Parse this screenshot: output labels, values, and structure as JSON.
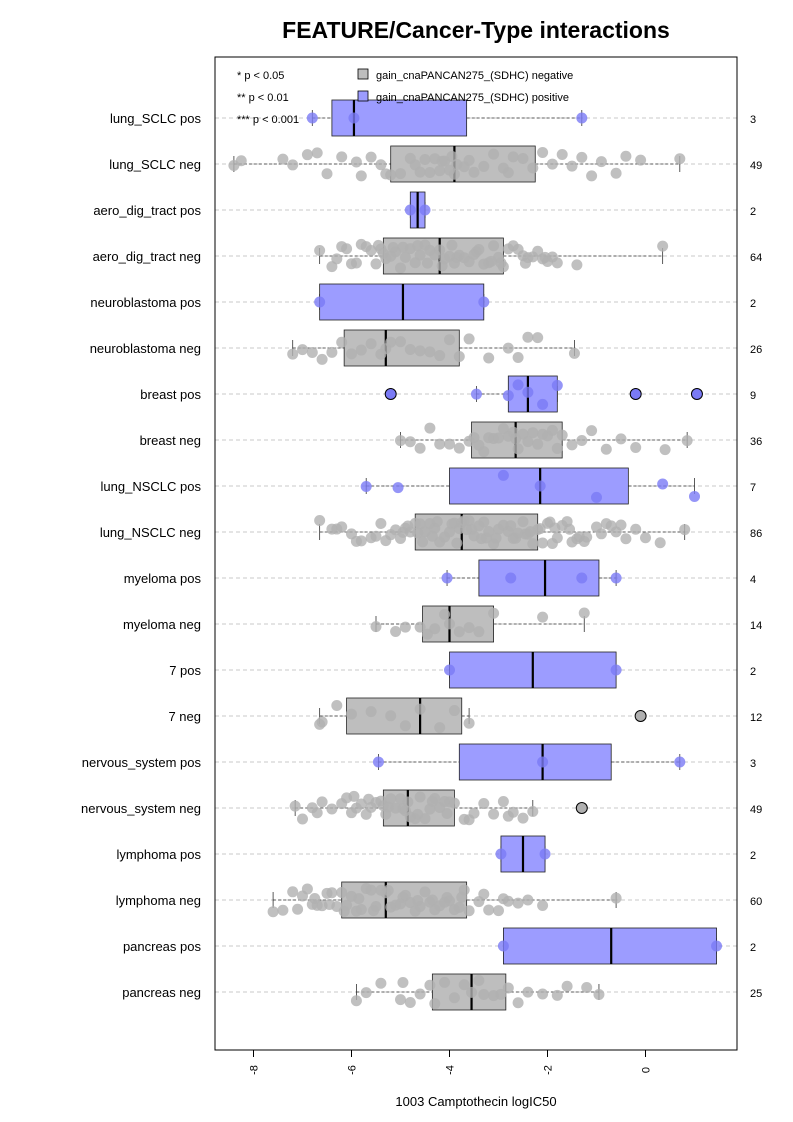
{
  "chart_data": {
    "type": "box",
    "title": "FEATURE/Cancer-Type interactions",
    "xlabel": "1003 Camptothecin logIC50",
    "xlim": [
      -8.8,
      1.8
    ],
    "xticks": [
      -8,
      -6,
      -4,
      -2,
      0
    ],
    "tick_labels": [
      "-8",
      "-6",
      "-4",
      "-2",
      "0"
    ],
    "grid": "horizontal dashed",
    "legend": {
      "placement": "top",
      "significance": [
        "* p < 0.05",
        "** p < 0.01",
        "*** p < 0.001"
      ],
      "entries": [
        {
          "label": "gain_cnaPANCAN275_(SDHC) negative",
          "color": "#bebebe"
        },
        {
          "label": "gain_cnaPANCAN275_(SDHC) positive",
          "color": "#9c9cff"
        }
      ]
    },
    "colors": {
      "neg": "#bebebe",
      "pos": "#9c9cff",
      "pos_point": "#7a7af5",
      "neg_point": "#b0b0b0"
    },
    "groups": [
      {
        "label": "lung_SCLC pos",
        "n": "3",
        "type": "pos",
        "q1": -6.4,
        "median": -5.95,
        "q3": -3.65,
        "whisker_low": -6.8,
        "whisker_high": -1.3,
        "points": [
          -6.8,
          -5.95,
          -1.3
        ],
        "outliers": []
      },
      {
        "label": "lung_SCLC neg",
        "n": "49",
        "type": "neg",
        "q1": -5.2,
        "median": -3.9,
        "q3": -2.25,
        "whisker_low": -8.4,
        "whisker_high": 0.7,
        "points": [
          -8.4,
          -8.25,
          -7.4,
          -7.2,
          -6.9,
          -6.7,
          -6.5,
          -6.2,
          -5.9,
          -5.8,
          -5.6,
          -5.4,
          -5.2,
          -5.0,
          -4.8,
          -4.7,
          -4.6,
          -4.5,
          -4.4,
          -4.3,
          -4.2,
          -4.1,
          -4.0,
          -3.9,
          -3.85,
          -3.7,
          -3.6,
          -3.5,
          -3.3,
          -3.1,
          -2.9,
          -2.7,
          -2.5,
          -2.3,
          -2.1,
          -1.9,
          -1.7,
          -1.5,
          -1.3,
          -1.1,
          -0.9,
          -0.6,
          -0.4,
          -0.1,
          0.7,
          -3.95,
          -4.15,
          -2.8,
          -5.3
        ],
        "outliers": []
      },
      {
        "label": "aero_dig_tract pos",
        "n": "2",
        "type": "pos",
        "q1": -4.8,
        "median": -4.65,
        "q3": -4.5,
        "whisker_low": -4.8,
        "whisker_high": -4.5,
        "points": [
          -4.8,
          -4.5
        ],
        "outliers": []
      },
      {
        "label": "aero_dig_tract neg",
        "n": "64",
        "type": "neg",
        "q1": -5.35,
        "median": -4.2,
        "q3": -2.9,
        "whisker_low": -6.65,
        "whisker_high": 0.35,
        "points": [
          -6.65,
          -6.4,
          -6.3,
          -6.2,
          -6.1,
          -6.0,
          -5.9,
          -5.8,
          -5.7,
          -5.6,
          -5.5,
          -5.4,
          -5.35,
          -5.3,
          -5.2,
          -5.1,
          -5.0,
          -4.9,
          -4.8,
          -4.7,
          -4.6,
          -4.5,
          -4.4,
          -4.3,
          -4.2,
          -4.15,
          -4.1,
          -4.0,
          -3.9,
          -3.8,
          -3.7,
          -3.6,
          -3.5,
          -3.4,
          -3.3,
          -3.2,
          -3.1,
          -3.0,
          -2.9,
          -2.8,
          -2.7,
          -2.6,
          -2.5,
          -2.4,
          -2.3,
          -2.2,
          -2.1,
          -2.0,
          -1.9,
          -1.8,
          -1.4,
          0.35,
          -5.45,
          -4.95,
          -4.45,
          -3.95,
          -3.45,
          -2.95,
          -2.45,
          -5.15,
          -4.65,
          -3.85,
          -3.15,
          -2.05
        ],
        "outliers": []
      },
      {
        "label": "neuroblastoma pos",
        "n": "2",
        "type": "pos",
        "q1": -6.65,
        "median": -4.95,
        "q3": -3.3,
        "whisker_low": -6.65,
        "whisker_high": -3.3,
        "points": [
          -6.65,
          -3.3
        ],
        "outliers": []
      },
      {
        "label": "neuroblastoma neg",
        "n": "26",
        "type": "neg",
        "q1": -6.15,
        "median": -5.3,
        "q3": -3.8,
        "whisker_low": -7.2,
        "whisker_high": -1.45,
        "points": [
          -7.2,
          -7.0,
          -6.8,
          -6.6,
          -6.4,
          -6.2,
          -6.0,
          -5.8,
          -5.6,
          -5.4,
          -5.3,
          -5.2,
          -5.0,
          -4.8,
          -4.6,
          -4.4,
          -4.2,
          -4.0,
          -3.8,
          -3.6,
          -3.2,
          -2.8,
          -2.6,
          -2.4,
          -2.2,
          -1.45
        ],
        "outliers": []
      },
      {
        "label": "breast pos",
        "n": "9",
        "type": "pos",
        "q1": -2.8,
        "median": -2.4,
        "q3": -1.8,
        "whisker_low": -3.45,
        "whisker_high": -1.8,
        "points": [
          -3.45,
          -2.8,
          -2.6,
          -2.4,
          -2.1,
          -1.8
        ],
        "outliers": [
          -5.2,
          -0.2,
          1.05
        ]
      },
      {
        "label": "breast neg",
        "n": "36",
        "type": "neg",
        "q1": -3.55,
        "median": -2.65,
        "q3": -1.7,
        "whisker_low": -5.0,
        "whisker_high": 0.85,
        "points": [
          -5.0,
          -4.8,
          -4.6,
          -4.4,
          -4.2,
          -4.0,
          -3.8,
          -3.6,
          -3.5,
          -3.4,
          -3.3,
          -3.2,
          -3.1,
          -3.0,
          -2.9,
          -2.8,
          -2.7,
          -2.65,
          -2.6,
          -2.5,
          -2.4,
          -2.3,
          -2.2,
          -2.1,
          -2.0,
          -1.9,
          -1.8,
          -1.7,
          -1.5,
          -1.3,
          -1.1,
          -0.8,
          -0.5,
          -0.2,
          0.4,
          0.85
        ],
        "outliers": []
      },
      {
        "label": "lung_NSCLC pos",
        "n": "7",
        "type": "pos",
        "q1": -4.0,
        "median": -2.15,
        "q3": -0.35,
        "whisker_low": -5.7,
        "whisker_high": 1.0,
        "points": [
          -5.7,
          -5.05,
          -2.9,
          -2.15,
          -1.0,
          0.35,
          1.0
        ],
        "outliers": []
      },
      {
        "label": "lung_NSCLC neg",
        "n": "86",
        "type": "neg",
        "q1": -4.7,
        "median": -3.75,
        "q3": -2.2,
        "whisker_low": -6.65,
        "whisker_high": 0.8,
        "points": [
          -6.65,
          -6.4,
          -6.2,
          -6.0,
          -5.8,
          -5.6,
          -5.4,
          -5.2,
          -5.0,
          -4.9,
          -4.8,
          -4.7,
          -4.6,
          -4.5,
          -4.4,
          -4.3,
          -4.2,
          -4.1,
          -4.0,
          -3.9,
          -3.8,
          -3.75,
          -3.7,
          -3.6,
          -3.5,
          -3.4,
          -3.3,
          -3.2,
          -3.1,
          -3.0,
          -2.9,
          -2.8,
          -2.7,
          -2.6,
          -2.5,
          -2.4,
          -2.3,
          -2.2,
          -2.1,
          -2.0,
          -1.9,
          -1.8,
          -1.7,
          -1.6,
          -1.5,
          -1.4,
          -1.2,
          -1.0,
          -0.8,
          -0.6,
          -0.4,
          -0.2,
          0.0,
          0.3,
          0.8,
          -6.3,
          -5.9,
          -5.5,
          -5.1,
          -4.85,
          -4.55,
          -4.25,
          -3.95,
          -3.65,
          -3.35,
          -3.05,
          -2.75,
          -2.45,
          -2.15,
          -1.85,
          -1.55,
          -1.25,
          -0.9,
          -0.5,
          -5.3,
          -4.95,
          -4.35,
          -3.85,
          -3.25,
          -2.65,
          -1.95,
          -1.35,
          -0.7,
          -4.65,
          -3.55,
          -2.35
        ],
        "outliers": []
      },
      {
        "label": "myeloma pos",
        "n": "4",
        "type": "pos",
        "q1": -3.4,
        "median": -2.05,
        "q3": -0.95,
        "whisker_low": -4.05,
        "whisker_high": -0.6,
        "points": [
          -4.05,
          -2.75,
          -1.3,
          -0.6
        ],
        "outliers": []
      },
      {
        "label": "myeloma neg",
        "n": "14",
        "type": "neg",
        "q1": -4.55,
        "median": -4.0,
        "q3": -3.1,
        "whisker_low": -5.5,
        "whisker_high": -1.25,
        "points": [
          -5.5,
          -5.1,
          -4.9,
          -4.6,
          -4.45,
          -4.3,
          -4.1,
          -4.0,
          -3.8,
          -3.6,
          -3.4,
          -3.1,
          -2.1,
          -1.25
        ],
        "outliers": []
      },
      {
        "label": "7 pos",
        "n": "2",
        "type": "pos",
        "q1": -4.0,
        "median": -2.3,
        "q3": -0.6,
        "whisker_low": -4.0,
        "whisker_high": -0.6,
        "points": [
          -4.0,
          -0.6
        ],
        "outliers": []
      },
      {
        "label": "7 neg",
        "n": "12",
        "type": "neg",
        "q1": -6.1,
        "median": -4.6,
        "q3": -3.75,
        "whisker_low": -6.65,
        "whisker_high": -3.6,
        "points": [
          -6.65,
          -6.6,
          -6.3,
          -6.0,
          -5.6,
          -5.2,
          -4.9,
          -4.6,
          -4.2,
          -3.9,
          -3.6
        ],
        "outliers": [
          -0.1
        ]
      },
      {
        "label": "nervous_system pos",
        "n": "3",
        "type": "pos",
        "q1": -3.8,
        "median": -2.1,
        "q3": -0.7,
        "whisker_low": -5.45,
        "whisker_high": 0.7,
        "points": [
          -5.45,
          -2.1,
          0.7
        ],
        "outliers": []
      },
      {
        "label": "nervous_system neg",
        "n": "49",
        "type": "neg",
        "q1": -5.35,
        "median": -4.85,
        "q3": -3.9,
        "whisker_low": -7.15,
        "whisker_high": -2.3,
        "points": [
          -7.15,
          -7.0,
          -6.8,
          -6.6,
          -6.4,
          -6.2,
          -6.0,
          -5.9,
          -5.8,
          -5.7,
          -5.6,
          -5.5,
          -5.4,
          -5.35,
          -5.3,
          -5.2,
          -5.1,
          -5.0,
          -4.9,
          -4.85,
          -4.8,
          -4.7,
          -4.6,
          -4.5,
          -4.4,
          -4.3,
          -4.2,
          -4.1,
          -4.0,
          -3.9,
          -3.7,
          -3.5,
          -3.3,
          -3.1,
          -2.9,
          -2.7,
          -2.5,
          -2.3,
          -6.7,
          -6.1,
          -5.65,
          -5.25,
          -4.95,
          -4.65,
          -4.35,
          -4.05,
          -3.6,
          -2.8,
          -5.95
        ],
        "outliers": [
          -1.3
        ]
      },
      {
        "label": "lymphoma pos",
        "n": "2",
        "type": "pos",
        "q1": -2.95,
        "median": -2.5,
        "q3": -2.05,
        "whisker_low": -2.95,
        "whisker_high": -2.05,
        "points": [
          -2.95,
          -2.05
        ],
        "outliers": []
      },
      {
        "label": "lymphoma neg",
        "n": "60",
        "type": "neg",
        "q1": -6.2,
        "median": -5.3,
        "q3": -3.65,
        "whisker_low": -7.6,
        "whisker_high": -0.6,
        "points": [
          -7.6,
          -7.4,
          -7.2,
          -7.0,
          -6.9,
          -6.8,
          -6.7,
          -6.6,
          -6.5,
          -6.4,
          -6.3,
          -6.2,
          -6.1,
          -6.0,
          -5.9,
          -5.8,
          -5.7,
          -5.6,
          -5.5,
          -5.4,
          -5.3,
          -5.2,
          -5.1,
          -5.0,
          -4.9,
          -4.8,
          -4.7,
          -4.6,
          -4.5,
          -4.4,
          -4.3,
          -4.2,
          -4.1,
          -4.0,
          -3.9,
          -3.8,
          -3.7,
          -3.6,
          -3.4,
          -3.2,
          -3.0,
          -2.8,
          -2.6,
          -2.4,
          -2.1,
          -0.6,
          -7.1,
          -6.75,
          -6.45,
          -6.15,
          -5.85,
          -5.55,
          -5.25,
          -4.95,
          -4.65,
          -4.35,
          -4.05,
          -3.75,
          -3.3,
          -2.9
        ],
        "outliers": []
      },
      {
        "label": "pancreas pos",
        "n": "2",
        "type": "pos",
        "q1": -2.9,
        "median": -0.7,
        "q3": 1.45,
        "whisker_low": -2.9,
        "whisker_high": 1.45,
        "points": [
          -2.9,
          1.45
        ],
        "outliers": []
      },
      {
        "label": "pancreas neg",
        "n": "25",
        "type": "neg",
        "q1": -4.35,
        "median": -3.55,
        "q3": -2.85,
        "whisker_low": -5.9,
        "whisker_high": -0.95,
        "points": [
          -5.9,
          -5.7,
          -5.4,
          -5.0,
          -4.8,
          -4.6,
          -4.4,
          -4.3,
          -4.1,
          -3.9,
          -3.7,
          -3.55,
          -3.4,
          -3.3,
          -3.1,
          -2.95,
          -2.8,
          -2.6,
          -2.4,
          -2.1,
          -1.8,
          -1.6,
          -1.2,
          -0.95,
          -4.95
        ],
        "outliers": []
      }
    ]
  }
}
